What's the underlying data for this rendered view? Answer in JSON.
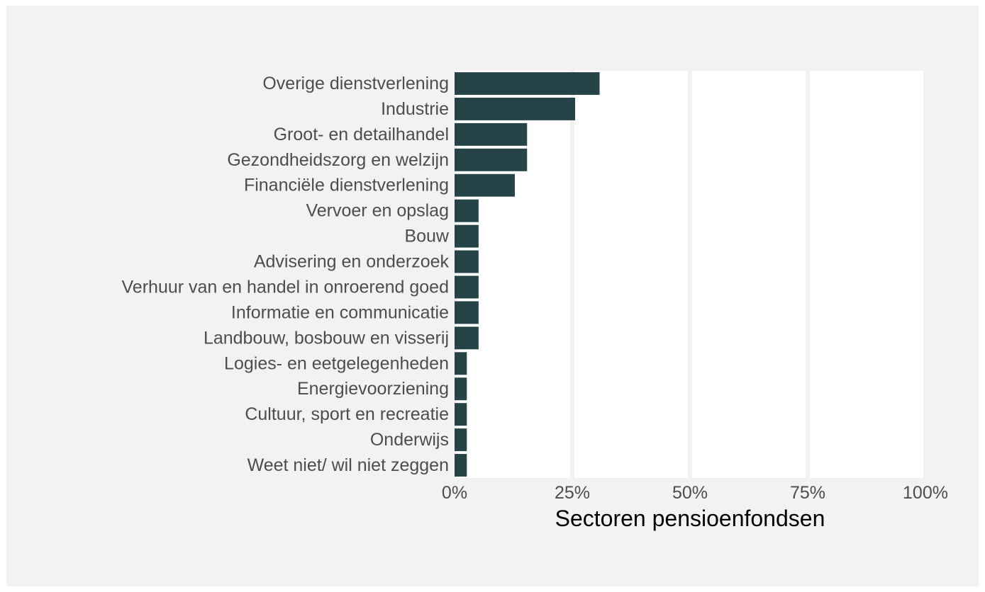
{
  "chart_data": {
    "type": "bar",
    "orientation": "horizontal",
    "title": "",
    "xlabel": "Sectoren pensioenfondsen",
    "ylabel": "",
    "xlim": [
      0,
      100
    ],
    "x_ticks": [
      0,
      25,
      50,
      75,
      100
    ],
    "x_tick_labels": [
      "0%",
      "25%",
      "50%",
      "75%",
      "100%"
    ],
    "grid": true,
    "legend": "none",
    "bar_color": "#264348",
    "panel_background": "#ffffff",
    "plot_background": "#f2f2f2",
    "grid_color": "#f2f2f2",
    "categories": [
      "Overige dienstverlening",
      "Industrie",
      "Groot- en detailhandel",
      "Gezondheidszorg en welzijn",
      "Financiële dienstverlening",
      "Vervoer en opslag",
      "Bouw",
      "Advisering en onderzoek",
      "Verhuur van en handel in onroerend goed",
      "Informatie en communicatie",
      "Landbouw, bosbouw en visserij",
      "Logies- en eetgelegenheden",
      "Energievoorziening",
      "Cultuur, sport en recreatie",
      "Onderwijs",
      "Weet niet/ wil niet zeggen"
    ],
    "values": [
      30.8,
      25.6,
      15.4,
      15.4,
      12.8,
      5.1,
      5.1,
      5.1,
      5.1,
      5.1,
      5.1,
      2.6,
      2.6,
      2.6,
      2.6,
      2.6
    ]
  }
}
